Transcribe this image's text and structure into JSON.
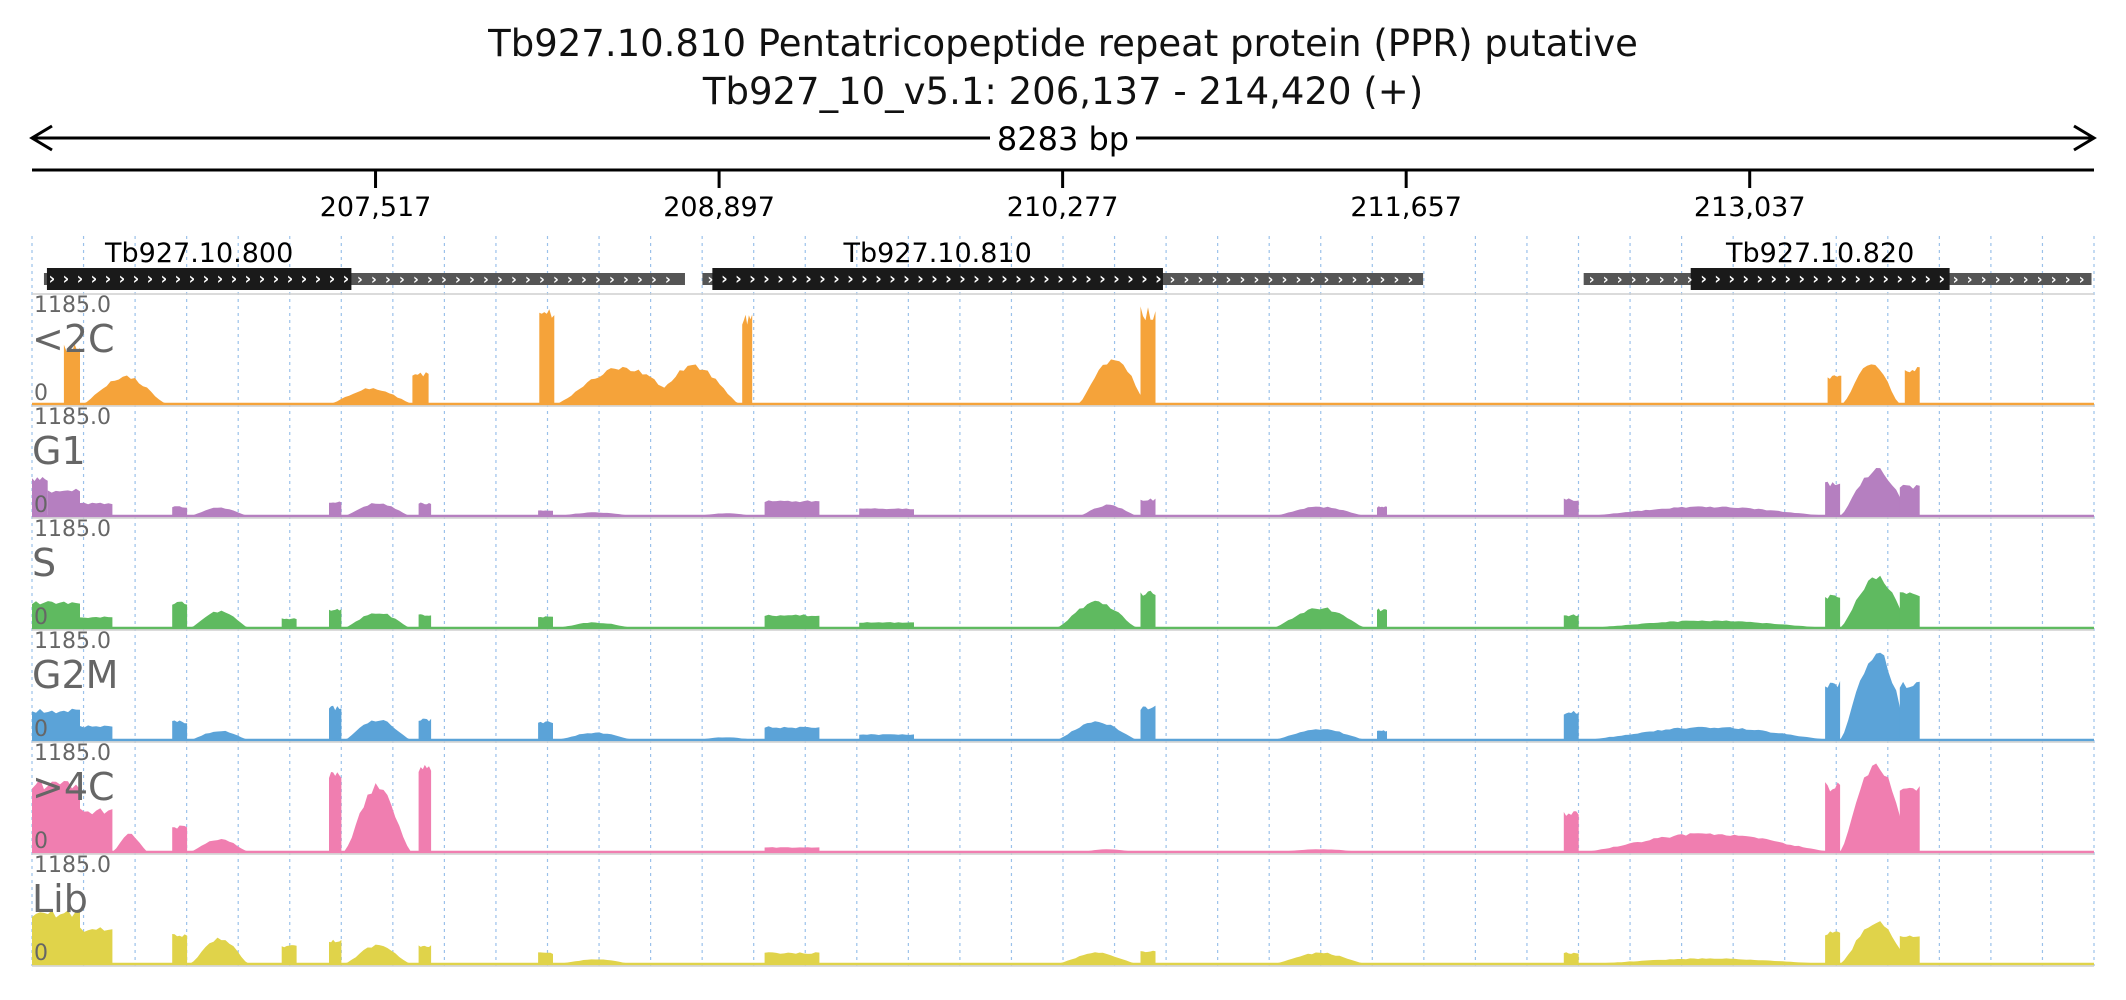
{
  "header": {
    "title": "Tb927.10.810  Pentatricopeptide repeat protein (PPR)  putative",
    "subtitle": "Tb927_10_v5.1: 206,137 - 214,420 (+)"
  },
  "region": {
    "chrom": "Tb927_10_v5.1",
    "start": 206137,
    "end": 214420,
    "span_label": "8283 bp"
  },
  "ruler": {
    "ticks": [
      {
        "pos": 207517,
        "label": "207,517"
      },
      {
        "pos": 208897,
        "label": "208,897"
      },
      {
        "pos": 210277,
        "label": "210,277"
      },
      {
        "pos": 211657,
        "label": "211,657"
      },
      {
        "pos": 213037,
        "label": "213,037"
      }
    ]
  },
  "genes": [
    {
      "name": "Tb927.10.800",
      "strand": "+",
      "start": 206185,
      "end": 208760,
      "cds_start": 206197,
      "cds_end": 207420
    },
    {
      "name": "Tb927.10.810",
      "strand": "+",
      "start": 208830,
      "end": 211725,
      "cds_start": 208870,
      "cds_end": 210680
    },
    {
      "name": "Tb927.10.820",
      "strand": "+",
      "start": 212370,
      "end": 214410,
      "cds_start": 212800,
      "cds_end": 213840
    }
  ],
  "tracks": [
    {
      "label": "<2C",
      "max_label": "1185.0",
      "min_label": "0",
      "color": "#f5a33a",
      "peaks": [
        {
          "start": 206265,
          "end": 206330,
          "height": 0.62,
          "shape": "flat"
        },
        {
          "start": 206340,
          "end": 206680,
          "height": 0.3,
          "shape": "hump"
        },
        {
          "start": 207330,
          "end": 207670,
          "height": 0.17,
          "shape": "hump"
        },
        {
          "start": 207665,
          "end": 207730,
          "height": 0.33,
          "shape": "flat"
        },
        {
          "start": 208175,
          "end": 208235,
          "height": 1.0,
          "shape": "flat"
        },
        {
          "start": 208240,
          "end": 208780,
          "height": 0.4,
          "shape": "hump"
        },
        {
          "start": 208610,
          "end": 208980,
          "height": 0.42,
          "shape": "hump"
        },
        {
          "start": 208990,
          "end": 209030,
          "height": 0.95,
          "shape": "flat"
        },
        {
          "start": 210340,
          "end": 210620,
          "height": 0.5,
          "shape": "hump"
        },
        {
          "start": 210590,
          "end": 210650,
          "height": 1.0,
          "shape": "flat"
        },
        {
          "start": 212340,
          "end": 213390,
          "height": 0.0,
          "shape": "flat"
        },
        {
          "start": 213350,
          "end": 213405,
          "height": 0.3,
          "shape": "flat"
        },
        {
          "start": 213410,
          "end": 213640,
          "height": 0.45,
          "shape": "hump"
        },
        {
          "start": 213660,
          "end": 213720,
          "height": 0.38,
          "shape": "flat"
        }
      ]
    },
    {
      "label": "G1",
      "max_label": "1185.0",
      "min_label": "0",
      "color": "#b57fc0",
      "peaks": [
        {
          "start": 206137,
          "end": 206200,
          "height": 0.4,
          "shape": "flat"
        },
        {
          "start": 206200,
          "end": 206330,
          "height": 0.28,
          "shape": "flat"
        },
        {
          "start": 206330,
          "end": 206460,
          "height": 0.14,
          "shape": "flat"
        },
        {
          "start": 206700,
          "end": 206760,
          "height": 0.1,
          "shape": "flat"
        },
        {
          "start": 206770,
          "end": 207010,
          "height": 0.09,
          "shape": "hump"
        },
        {
          "start": 207330,
          "end": 207380,
          "height": 0.15,
          "shape": "flat"
        },
        {
          "start": 207390,
          "end": 207660,
          "height": 0.14,
          "shape": "hump"
        },
        {
          "start": 207690,
          "end": 207740,
          "height": 0.14,
          "shape": "flat"
        },
        {
          "start": 208170,
          "end": 208230,
          "height": 0.06,
          "shape": "flat"
        },
        {
          "start": 208240,
          "end": 208560,
          "height": 0.04,
          "shape": "hump"
        },
        {
          "start": 208800,
          "end": 209050,
          "height": 0.03,
          "shape": "hump"
        },
        {
          "start": 209080,
          "end": 209300,
          "height": 0.16,
          "shape": "flat"
        },
        {
          "start": 209460,
          "end": 209680,
          "height": 0.08,
          "shape": "flat"
        },
        {
          "start": 210340,
          "end": 210580,
          "height": 0.12,
          "shape": "hump"
        },
        {
          "start": 210590,
          "end": 210650,
          "height": 0.18,
          "shape": "flat"
        },
        {
          "start": 211120,
          "end": 211500,
          "height": 0.1,
          "shape": "hump"
        },
        {
          "start": 211540,
          "end": 211580,
          "height": 0.1,
          "shape": "flat"
        },
        {
          "start": 212290,
          "end": 212350,
          "height": 0.18,
          "shape": "flat"
        },
        {
          "start": 212360,
          "end": 213380,
          "height": 0.1,
          "shape": "hump"
        },
        {
          "start": 213340,
          "end": 213400,
          "height": 0.35,
          "shape": "flat"
        },
        {
          "start": 213400,
          "end": 213690,
          "height": 0.5,
          "shape": "hump"
        },
        {
          "start": 213640,
          "end": 213720,
          "height": 0.32,
          "shape": "flat"
        }
      ]
    },
    {
      "label": "S",
      "max_label": "1185.0",
      "min_label": "0",
      "color": "#5fba60",
      "peaks": [
        {
          "start": 206137,
          "end": 206330,
          "height": 0.28,
          "shape": "flat"
        },
        {
          "start": 206330,
          "end": 206460,
          "height": 0.12,
          "shape": "flat"
        },
        {
          "start": 206700,
          "end": 206760,
          "height": 0.28,
          "shape": "flat"
        },
        {
          "start": 206770,
          "end": 207010,
          "height": 0.18,
          "shape": "hump"
        },
        {
          "start": 207140,
          "end": 207200,
          "height": 0.1,
          "shape": "flat"
        },
        {
          "start": 207330,
          "end": 207380,
          "height": 0.2,
          "shape": "flat"
        },
        {
          "start": 207390,
          "end": 207660,
          "height": 0.17,
          "shape": "hump"
        },
        {
          "start": 207690,
          "end": 207740,
          "height": 0.14,
          "shape": "flat"
        },
        {
          "start": 208170,
          "end": 208230,
          "height": 0.12,
          "shape": "flat"
        },
        {
          "start": 208240,
          "end": 208560,
          "height": 0.06,
          "shape": "hump"
        },
        {
          "start": 209080,
          "end": 209300,
          "height": 0.14,
          "shape": "flat"
        },
        {
          "start": 209460,
          "end": 209680,
          "height": 0.06,
          "shape": "flat"
        },
        {
          "start": 210250,
          "end": 210580,
          "height": 0.28,
          "shape": "hump"
        },
        {
          "start": 210590,
          "end": 210650,
          "height": 0.38,
          "shape": "flat"
        },
        {
          "start": 211120,
          "end": 211500,
          "height": 0.22,
          "shape": "hump"
        },
        {
          "start": 211540,
          "end": 211580,
          "height": 0.2,
          "shape": "flat"
        },
        {
          "start": 212290,
          "end": 212350,
          "height": 0.14,
          "shape": "flat"
        },
        {
          "start": 212360,
          "end": 213380,
          "height": 0.08,
          "shape": "hump"
        },
        {
          "start": 213340,
          "end": 213400,
          "height": 0.35,
          "shape": "flat"
        },
        {
          "start": 213400,
          "end": 213690,
          "height": 0.55,
          "shape": "hump"
        },
        {
          "start": 213640,
          "end": 213720,
          "height": 0.38,
          "shape": "flat"
        }
      ]
    },
    {
      "label": "G2M",
      "max_label": "1185.0",
      "min_label": "0",
      "color": "#5ba3d8",
      "peaks": [
        {
          "start": 206137,
          "end": 206330,
          "height": 0.32,
          "shape": "flat"
        },
        {
          "start": 206330,
          "end": 206460,
          "height": 0.15,
          "shape": "flat"
        },
        {
          "start": 206700,
          "end": 206760,
          "height": 0.2,
          "shape": "flat"
        },
        {
          "start": 206770,
          "end": 207010,
          "height": 0.1,
          "shape": "hump"
        },
        {
          "start": 207330,
          "end": 207380,
          "height": 0.35,
          "shape": "flat"
        },
        {
          "start": 207390,
          "end": 207660,
          "height": 0.22,
          "shape": "hump"
        },
        {
          "start": 207690,
          "end": 207740,
          "height": 0.22,
          "shape": "flat"
        },
        {
          "start": 208170,
          "end": 208230,
          "height": 0.2,
          "shape": "flat"
        },
        {
          "start": 208240,
          "end": 208560,
          "height": 0.08,
          "shape": "hump"
        },
        {
          "start": 208800,
          "end": 209050,
          "height": 0.03,
          "shape": "hump"
        },
        {
          "start": 209080,
          "end": 209300,
          "height": 0.14,
          "shape": "flat"
        },
        {
          "start": 209460,
          "end": 209680,
          "height": 0.06,
          "shape": "flat"
        },
        {
          "start": 210250,
          "end": 210580,
          "height": 0.2,
          "shape": "hump"
        },
        {
          "start": 210590,
          "end": 210650,
          "height": 0.36,
          "shape": "flat"
        },
        {
          "start": 211120,
          "end": 211500,
          "height": 0.12,
          "shape": "hump"
        },
        {
          "start": 211540,
          "end": 211580,
          "height": 0.1,
          "shape": "flat"
        },
        {
          "start": 212290,
          "end": 212350,
          "height": 0.3,
          "shape": "flat"
        },
        {
          "start": 212360,
          "end": 213380,
          "height": 0.14,
          "shape": "hump"
        },
        {
          "start": 213340,
          "end": 213400,
          "height": 0.62,
          "shape": "flat"
        },
        {
          "start": 213400,
          "end": 213690,
          "height": 0.95,
          "shape": "hump"
        },
        {
          "start": 213640,
          "end": 213720,
          "height": 0.6,
          "shape": "flat"
        }
      ]
    },
    {
      "label": ">4C",
      "max_label": "1185.0",
      "min_label": "0",
      "color": "#f07eb0",
      "peaks": [
        {
          "start": 206137,
          "end": 206330,
          "height": 0.75,
          "shape": "flat"
        },
        {
          "start": 206330,
          "end": 206460,
          "height": 0.45,
          "shape": "flat"
        },
        {
          "start": 206460,
          "end": 206600,
          "height": 0.2,
          "shape": "hump"
        },
        {
          "start": 206700,
          "end": 206760,
          "height": 0.28,
          "shape": "flat"
        },
        {
          "start": 206770,
          "end": 207010,
          "height": 0.14,
          "shape": "hump"
        },
        {
          "start": 207330,
          "end": 207380,
          "height": 0.85,
          "shape": "flat"
        },
        {
          "start": 207390,
          "end": 207660,
          "height": 0.72,
          "shape": "hump"
        },
        {
          "start": 207690,
          "end": 207740,
          "height": 0.95,
          "shape": "flat"
        },
        {
          "start": 209080,
          "end": 209300,
          "height": 0.05,
          "shape": "flat"
        },
        {
          "start": 210340,
          "end": 210580,
          "height": 0.03,
          "shape": "hump"
        },
        {
          "start": 211120,
          "end": 211500,
          "height": 0.03,
          "shape": "hump"
        },
        {
          "start": 212290,
          "end": 212350,
          "height": 0.42,
          "shape": "flat"
        },
        {
          "start": 212360,
          "end": 213380,
          "height": 0.2,
          "shape": "hump"
        },
        {
          "start": 213340,
          "end": 213400,
          "height": 0.72,
          "shape": "flat"
        },
        {
          "start": 213400,
          "end": 213690,
          "height": 0.98,
          "shape": "hump"
        },
        {
          "start": 213640,
          "end": 213720,
          "height": 0.68,
          "shape": "flat"
        }
      ]
    },
    {
      "label": "Lib",
      "max_label": "1185.0",
      "min_label": "0",
      "color": "#e0d34a",
      "peaks": [
        {
          "start": 206137,
          "end": 206330,
          "height": 0.55,
          "shape": "flat"
        },
        {
          "start": 206330,
          "end": 206460,
          "height": 0.38,
          "shape": "flat"
        },
        {
          "start": 206700,
          "end": 206760,
          "height": 0.32,
          "shape": "flat"
        },
        {
          "start": 206770,
          "end": 207010,
          "height": 0.28,
          "shape": "hump"
        },
        {
          "start": 207140,
          "end": 207200,
          "height": 0.2,
          "shape": "flat"
        },
        {
          "start": 207330,
          "end": 207380,
          "height": 0.25,
          "shape": "flat"
        },
        {
          "start": 207390,
          "end": 207660,
          "height": 0.2,
          "shape": "hump"
        },
        {
          "start": 207690,
          "end": 207740,
          "height": 0.2,
          "shape": "flat"
        },
        {
          "start": 208170,
          "end": 208230,
          "height": 0.12,
          "shape": "flat"
        },
        {
          "start": 208240,
          "end": 208560,
          "height": 0.05,
          "shape": "hump"
        },
        {
          "start": 209080,
          "end": 209300,
          "height": 0.12,
          "shape": "flat"
        },
        {
          "start": 210250,
          "end": 210580,
          "height": 0.12,
          "shape": "hump"
        },
        {
          "start": 210590,
          "end": 210650,
          "height": 0.14,
          "shape": "flat"
        },
        {
          "start": 211120,
          "end": 211500,
          "height": 0.12,
          "shape": "hump"
        },
        {
          "start": 212290,
          "end": 212350,
          "height": 0.12,
          "shape": "flat"
        },
        {
          "start": 212360,
          "end": 213380,
          "height": 0.06,
          "shape": "hump"
        },
        {
          "start": 213340,
          "end": 213400,
          "height": 0.34,
          "shape": "flat"
        },
        {
          "start": 213400,
          "end": 213690,
          "height": 0.45,
          "shape": "hump"
        },
        {
          "start": 213640,
          "end": 213720,
          "height": 0.32,
          "shape": "flat"
        }
      ]
    }
  ],
  "colors": {
    "gene_cds": "#1a1a1a",
    "gene_utr": "#555555",
    "gridline": "#4a90d9",
    "axis": "#000000"
  }
}
